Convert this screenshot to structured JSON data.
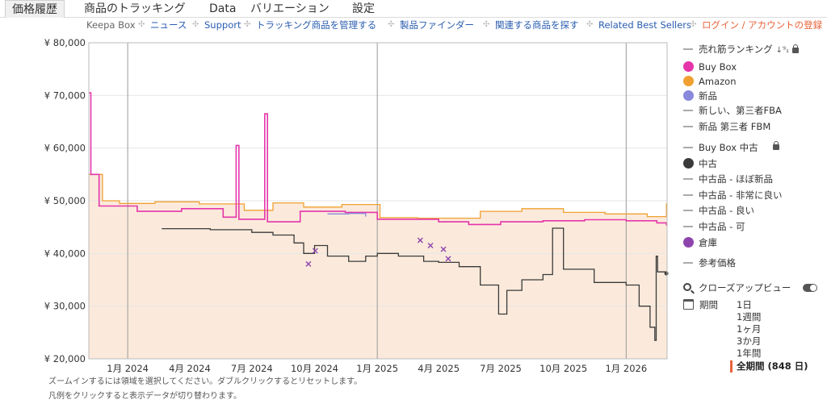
{
  "tabs": [
    "価格履歴",
    "商品のトラッキング",
    "Data",
    "バリエーション",
    "設定"
  ],
  "nav": {
    "keepa_box": "Keepa Box",
    "links": [
      "ニュース",
      "Support",
      "トラッキング商品を管理する",
      "製品ファインダー",
      "関連する商品を探す",
      "Related Best Sellers"
    ],
    "login": "ログイン / アカウントの登録",
    "separator": "✣"
  },
  "legend": {
    "sales_rank": "売れ筋ランキング",
    "sort_glyph": "↓⁹₁",
    "items": [
      {
        "label": "Buy Box",
        "color": "#e535ab",
        "style": "dot"
      },
      {
        "label": "Amazon",
        "color": "#f0a030",
        "style": "dot"
      },
      {
        "label": "新品",
        "color": "#8888dd",
        "style": "dot"
      },
      {
        "label": "新しい、第三者FBA",
        "color": "#aaaaaa",
        "style": "dash"
      },
      {
        "label": "新品 第三者 FBM",
        "color": "#aaaaaa",
        "style": "dash"
      },
      {
        "label": "Buy Box 中古",
        "color": "#aaaaaa",
        "style": "dash"
      },
      {
        "label": "中古",
        "color": "#3a3a3a",
        "style": "dot"
      },
      {
        "label": "中古品 - ほぼ新品",
        "color": "#aaaaaa",
        "style": "dash"
      },
      {
        "label": "中古品 - 非常に良い",
        "color": "#aaaaaa",
        "style": "dash"
      },
      {
        "label": "中古品 - 良い",
        "color": "#aaaaaa",
        "style": "dash"
      },
      {
        "label": "中古品 - 可",
        "color": "#aaaaaa",
        "style": "dash"
      },
      {
        "label": "倉庫",
        "color": "#8e44ad",
        "style": "dot"
      },
      {
        "label": "参考価格",
        "color": "#aaaaaa",
        "style": "dash"
      }
    ]
  },
  "zoom": {
    "label": "クローズアップビュー"
  },
  "period": {
    "label": "期間",
    "options": [
      "1日",
      "1週間",
      "1ヶ月",
      "3か月",
      "1年間"
    ],
    "selected": "全期間 (848 日)"
  },
  "footnotes": [
    "ズームインするには領域を選択してください。ダブルクリックするとリセットします。",
    "凡例をクリックすると表示データが切り替わります。"
  ],
  "chart_data": {
    "type": "line",
    "y_tick_labels": [
      "¥ 80,000",
      "¥ 70,000",
      "¥ 60,000",
      "¥ 50,000",
      "¥ 40,000",
      "¥ 30,000",
      "¥ 20,000"
    ],
    "y_ticks": [
      80000,
      70000,
      60000,
      50000,
      40000,
      30000,
      20000
    ],
    "ylim": [
      20000,
      80000
    ],
    "x_tick_labels": [
      "1月 2024",
      "4月 2024",
      "7月 2024",
      "10月 2024",
      "1月 2025",
      "4月 2025",
      "7月 2025",
      "10月 2025",
      "1月 2026"
    ],
    "x_ticks": [
      "2024-01",
      "2024-04",
      "2024-07",
      "2024-10",
      "2025-01",
      "2025-04",
      "2025-07",
      "2025-10",
      "2026-01"
    ],
    "x_start": "2023-11-05",
    "x_end": "2026-03-02",
    "series": [
      {
        "name": "Amazon",
        "color": "#f0a030",
        "fill": "#fbeadb",
        "points": [
          [
            "2023-11-05",
            55000
          ],
          [
            "2023-11-25",
            50000
          ],
          [
            "2023-12-20",
            49500
          ],
          [
            "2024-02-10",
            49800
          ],
          [
            "2024-04-15",
            49400
          ],
          [
            "2024-06-20",
            48200
          ],
          [
            "2024-08-01",
            49600
          ],
          [
            "2024-09-15",
            48800
          ],
          [
            "2024-11-10",
            49300
          ],
          [
            "2025-01-05",
            46800
          ],
          [
            "2025-03-01",
            46700
          ],
          [
            "2025-06-01",
            48000
          ],
          [
            "2025-08-01",
            48500
          ],
          [
            "2025-10-01",
            47800
          ],
          [
            "2025-12-01",
            47500
          ],
          [
            "2026-02-01",
            47000
          ],
          [
            "2026-03-01",
            49500
          ]
        ]
      },
      {
        "name": "Buy Box",
        "color": "#e535ab",
        "points": [
          [
            "2023-11-05",
            70500
          ],
          [
            "2023-11-08",
            55000
          ],
          [
            "2023-11-20",
            49000
          ],
          [
            "2024-01-15",
            48000
          ],
          [
            "2024-03-20",
            48500
          ],
          [
            "2024-05-20",
            46900
          ],
          [
            "2024-06-08",
            60500
          ],
          [
            "2024-06-12",
            46500
          ],
          [
            "2024-07-01",
            46500
          ],
          [
            "2024-07-20",
            66500
          ],
          [
            "2024-07-24",
            46000
          ],
          [
            "2024-09-10",
            48000
          ],
          [
            "2024-11-15",
            47800
          ],
          [
            "2025-01-01",
            46500
          ],
          [
            "2025-04-01",
            46000
          ],
          [
            "2025-05-15",
            45500
          ],
          [
            "2025-07-01",
            46000
          ],
          [
            "2025-09-01",
            46200
          ],
          [
            "2025-11-01",
            46400
          ],
          [
            "2026-01-01",
            46200
          ],
          [
            "2026-02-15",
            45800
          ],
          [
            "2026-03-01",
            45300
          ]
        ]
      },
      {
        "name": "新品",
        "color": "#8888dd",
        "points": [
          [
            "2024-10-20",
            47500
          ],
          [
            "2024-11-20",
            47600
          ],
          [
            "2024-12-15",
            47000
          ]
        ]
      },
      {
        "name": "中古",
        "color": "#3a3a3a",
        "points": [
          [
            "2024-02-20",
            44700
          ],
          [
            "2024-05-01",
            44500
          ],
          [
            "2024-07-01",
            44000
          ],
          [
            "2024-08-01",
            43500
          ],
          [
            "2024-09-01",
            42000
          ],
          [
            "2024-09-15",
            40000
          ],
          [
            "2024-10-01",
            41500
          ],
          [
            "2024-10-20",
            39500
          ],
          [
            "2024-11-20",
            38500
          ],
          [
            "2024-12-15",
            39500
          ],
          [
            "2025-01-01",
            40000
          ],
          [
            "2025-02-01",
            39500
          ],
          [
            "2025-03-10",
            38500
          ],
          [
            "2025-04-01",
            38300
          ],
          [
            "2025-05-01",
            37500
          ],
          [
            "2025-06-01",
            34000
          ],
          [
            "2025-06-28",
            28500
          ],
          [
            "2025-07-10",
            33000
          ],
          [
            "2025-08-01",
            35000
          ],
          [
            "2025-09-01",
            36000
          ],
          [
            "2025-09-15",
            44800
          ],
          [
            "2025-10-01",
            37000
          ],
          [
            "2025-11-15",
            34500
          ],
          [
            "2026-01-01",
            34000
          ],
          [
            "2026-01-20",
            30000
          ],
          [
            "2026-02-05",
            26000
          ],
          [
            "2026-02-12",
            23500
          ],
          [
            "2026-02-14",
            39500
          ],
          [
            "2026-02-16",
            36500
          ],
          [
            "2026-03-01",
            36200
          ]
        ]
      }
    ],
    "warehouse_points": [
      [
        "2024-09-22",
        38000
      ],
      [
        "2024-10-02",
        40500
      ],
      [
        "2025-03-05",
        42500
      ],
      [
        "2025-03-20",
        41500
      ],
      [
        "2025-04-08",
        40800
      ],
      [
        "2025-04-15",
        39000
      ]
    ]
  }
}
